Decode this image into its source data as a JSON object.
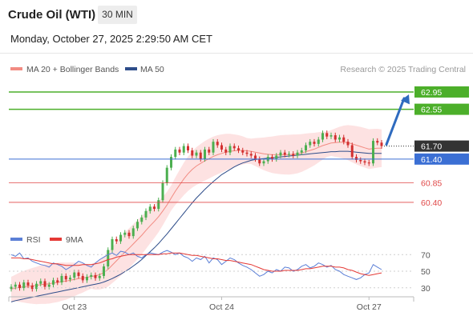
{
  "header": {
    "title": "Crude Oil (WTI)",
    "timeframe": "30 MIN",
    "datetime": "Monday, October 27, 2025 2:29:50 AM CET"
  },
  "legend": {
    "ma20_bb": "MA 20 + Bollinger Bands",
    "ma50": "MA 50",
    "copyright": "Research © 2025 Trading Central",
    "rsi": "RSI",
    "ma9": "9MA"
  },
  "colors": {
    "candle_up": "#4caf50",
    "candle_down": "#d32f2f",
    "ma20": "#f28b82",
    "bollinger_fill": "#fde2e2",
    "ma50": "#2e4d8a",
    "resistance": "#4caf2a",
    "pivot": "#3b6fd4",
    "support": "#e04848",
    "last_price": "#333333",
    "rsi": "#5b7fd6",
    "rsi_ma": "#e53935",
    "arrow": "#2f6bbf"
  },
  "chart_data": [
    {
      "type": "candlestick",
      "title": "Crude Oil (WTI)",
      "x_labels": [
        "Oct 23",
        "Oct 24",
        "Oct 27"
      ],
      "ylim": [
        59.9,
        63.3
      ],
      "levels": [
        {
          "label": "62.95",
          "value": 62.95,
          "kind": "resistance"
        },
        {
          "label": "62.55",
          "value": 62.55,
          "kind": "resistance"
        },
        {
          "label": "61.70",
          "value": 61.7,
          "kind": "last"
        },
        {
          "label": "61.40",
          "value": 61.4,
          "kind": "pivot"
        },
        {
          "label": "60.85",
          "value": 60.85,
          "kind": "support"
        },
        {
          "label": "60.40",
          "value": 60.4,
          "kind": "support"
        }
      ],
      "close": [
        58.45,
        58.5,
        58.42,
        58.55,
        58.48,
        58.4,
        58.52,
        58.58,
        58.45,
        58.5,
        58.6,
        58.55,
        58.7,
        58.62,
        58.66,
        58.78,
        58.7,
        58.6,
        58.68,
        58.72,
        58.65,
        58.7,
        58.92,
        59.3,
        59.55,
        59.5,
        59.65,
        59.7,
        59.62,
        59.8,
        59.95,
        60.05,
        60.2,
        60.3,
        60.25,
        60.45,
        60.85,
        61.2,
        61.45,
        61.62,
        61.55,
        61.7,
        61.6,
        61.48,
        61.55,
        61.4,
        61.62,
        61.55,
        61.8,
        61.72,
        61.62,
        61.55,
        61.7,
        61.65,
        61.6,
        61.55,
        61.52,
        61.48,
        61.4,
        61.3,
        61.35,
        61.45,
        61.4,
        61.48,
        61.55,
        61.5,
        61.52,
        61.48,
        61.55,
        61.6,
        61.72,
        61.8,
        61.75,
        61.85,
        62.0,
        61.92,
        61.95,
        61.85,
        61.9,
        61.8,
        61.72,
        61.45,
        61.38,
        61.35,
        61.32,
        61.3,
        61.82,
        61.78,
        61.7
      ],
      "ma20": [
        58.4,
        58.42,
        58.44,
        58.45,
        58.46,
        58.47,
        58.48,
        58.5,
        58.51,
        58.52,
        58.54,
        58.55,
        58.57,
        58.58,
        58.6,
        58.62,
        58.64,
        58.65,
        58.67,
        58.69,
        58.7,
        58.73,
        58.78,
        58.85,
        58.95,
        59.05,
        59.15,
        59.25,
        59.34,
        59.44,
        59.54,
        59.64,
        59.75,
        59.86,
        59.96,
        60.07,
        60.2,
        60.34,
        60.5,
        60.66,
        60.8,
        60.94,
        61.06,
        61.16,
        61.24,
        61.3,
        61.36,
        61.41,
        61.46,
        61.5,
        61.53,
        61.56,
        61.58,
        61.59,
        61.6,
        61.6,
        61.59,
        61.58,
        61.56,
        61.54,
        61.52,
        61.51,
        61.5,
        61.5,
        61.5,
        61.5,
        61.5,
        61.51,
        61.52,
        61.54,
        61.57,
        61.6,
        61.63,
        61.67,
        61.71,
        61.74,
        61.77,
        61.78,
        61.79,
        61.79,
        61.78,
        61.75,
        61.72,
        61.69,
        61.66,
        61.63,
        61.64,
        61.65,
        61.65
      ],
      "ma50": [
        58.1,
        58.13,
        58.15,
        58.17,
        58.19,
        58.21,
        58.23,
        58.25,
        58.27,
        58.29,
        58.31,
        58.33,
        58.35,
        58.37,
        58.39,
        58.41,
        58.43,
        58.45,
        58.47,
        58.49,
        58.51,
        58.53,
        58.56,
        58.6,
        58.64,
        58.69,
        58.74,
        58.8,
        58.86,
        58.93,
        59.0,
        59.08,
        59.17,
        59.26,
        59.35,
        59.45,
        59.56,
        59.67,
        59.79,
        59.91,
        60.03,
        60.15,
        60.27,
        60.39,
        60.5,
        60.6,
        60.7,
        60.79,
        60.88,
        60.96,
        61.04,
        61.1,
        61.16,
        61.22,
        61.27,
        61.31,
        61.34,
        61.37,
        61.39,
        61.4,
        61.41,
        61.42,
        61.43,
        61.44,
        61.45,
        61.46,
        61.47,
        61.48,
        61.49,
        61.5,
        61.51,
        61.52,
        61.53,
        61.54,
        61.55,
        61.56,
        61.57,
        61.57,
        61.58,
        61.58,
        61.58,
        61.57,
        61.56,
        61.55,
        61.54,
        61.53,
        61.53,
        61.53,
        61.53
      ],
      "ma20_label": "MA 20 + Bollinger Bands",
      "ma50_label": "MA 50"
    },
    {
      "type": "line",
      "ylim": [
        24,
        78
      ],
      "y_ticks": [
        70,
        50,
        30
      ],
      "series": [
        {
          "name": "RSI",
          "values": [
            70,
            68,
            72,
            65,
            66,
            62,
            60,
            58,
            57,
            55,
            60,
            58,
            56,
            52,
            55,
            58,
            62,
            60,
            57,
            55,
            60,
            64,
            67,
            70,
            72,
            69,
            74,
            73,
            70,
            72,
            68,
            66,
            70,
            72,
            71,
            70,
            73,
            75,
            73,
            70,
            72,
            68,
            66,
            62,
            66,
            64,
            68,
            60,
            66,
            64,
            58,
            62,
            66,
            64,
            60,
            57,
            55,
            52,
            48,
            44,
            46,
            50,
            48,
            52,
            50,
            55,
            54,
            50,
            52,
            56,
            58,
            54,
            56,
            60,
            58,
            55,
            57,
            52,
            50,
            46,
            44,
            42,
            40,
            42,
            46,
            48,
            58,
            55,
            52
          ]
        },
        {
          "name": "9MA",
          "values": [
            66,
            66,
            66,
            65,
            65,
            64,
            63,
            62,
            61,
            60,
            59,
            59,
            58,
            57,
            57,
            57,
            57,
            58,
            58,
            58,
            59,
            60,
            62,
            64,
            65,
            67,
            68,
            69,
            70,
            70,
            70,
            70,
            70,
            70,
            70,
            70,
            71,
            71,
            72,
            72,
            72,
            71,
            70,
            69,
            69,
            68,
            67,
            66,
            65,
            65,
            64,
            63,
            63,
            62,
            61,
            60,
            59,
            58,
            56,
            54,
            52,
            51,
            50,
            50,
            50,
            51,
            51,
            51,
            51,
            52,
            53,
            53,
            54,
            55,
            56,
            56,
            56,
            55,
            55,
            54,
            52,
            51,
            49,
            47,
            46,
            45,
            46,
            47,
            48
          ]
        }
      ]
    }
  ]
}
